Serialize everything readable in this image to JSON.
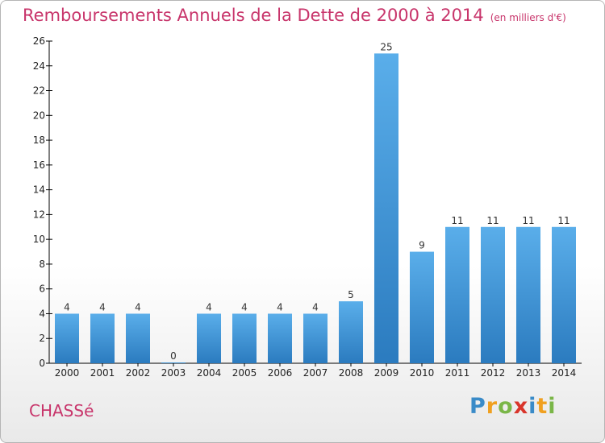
{
  "chart_data": {
    "type": "bar",
    "title": "Remboursements Annuels de la Dette de 2000 à 2014",
    "subtitle": "(en milliers d'€)",
    "categories": [
      "2000",
      "2001",
      "2002",
      "2003",
      "2004",
      "2005",
      "2006",
      "2007",
      "2008",
      "2009",
      "2010",
      "2011",
      "2012",
      "2013",
      "2014"
    ],
    "values": [
      4,
      4,
      4,
      0,
      4,
      4,
      4,
      4,
      5,
      25,
      9,
      11,
      11,
      11,
      11
    ],
    "ylim": [
      0,
      26
    ],
    "yticks": [
      0,
      2,
      4,
      6,
      8,
      10,
      12,
      14,
      16,
      18,
      20,
      22,
      24,
      26
    ],
    "grid": false,
    "bar_color_top": "#5aaeea",
    "bar_color_bottom": "#2b7bbf"
  },
  "footer": {
    "commune": "CHASSé",
    "logo": "Proxiti"
  },
  "colors": {
    "title": "#c8356b",
    "axis": "#000000"
  }
}
